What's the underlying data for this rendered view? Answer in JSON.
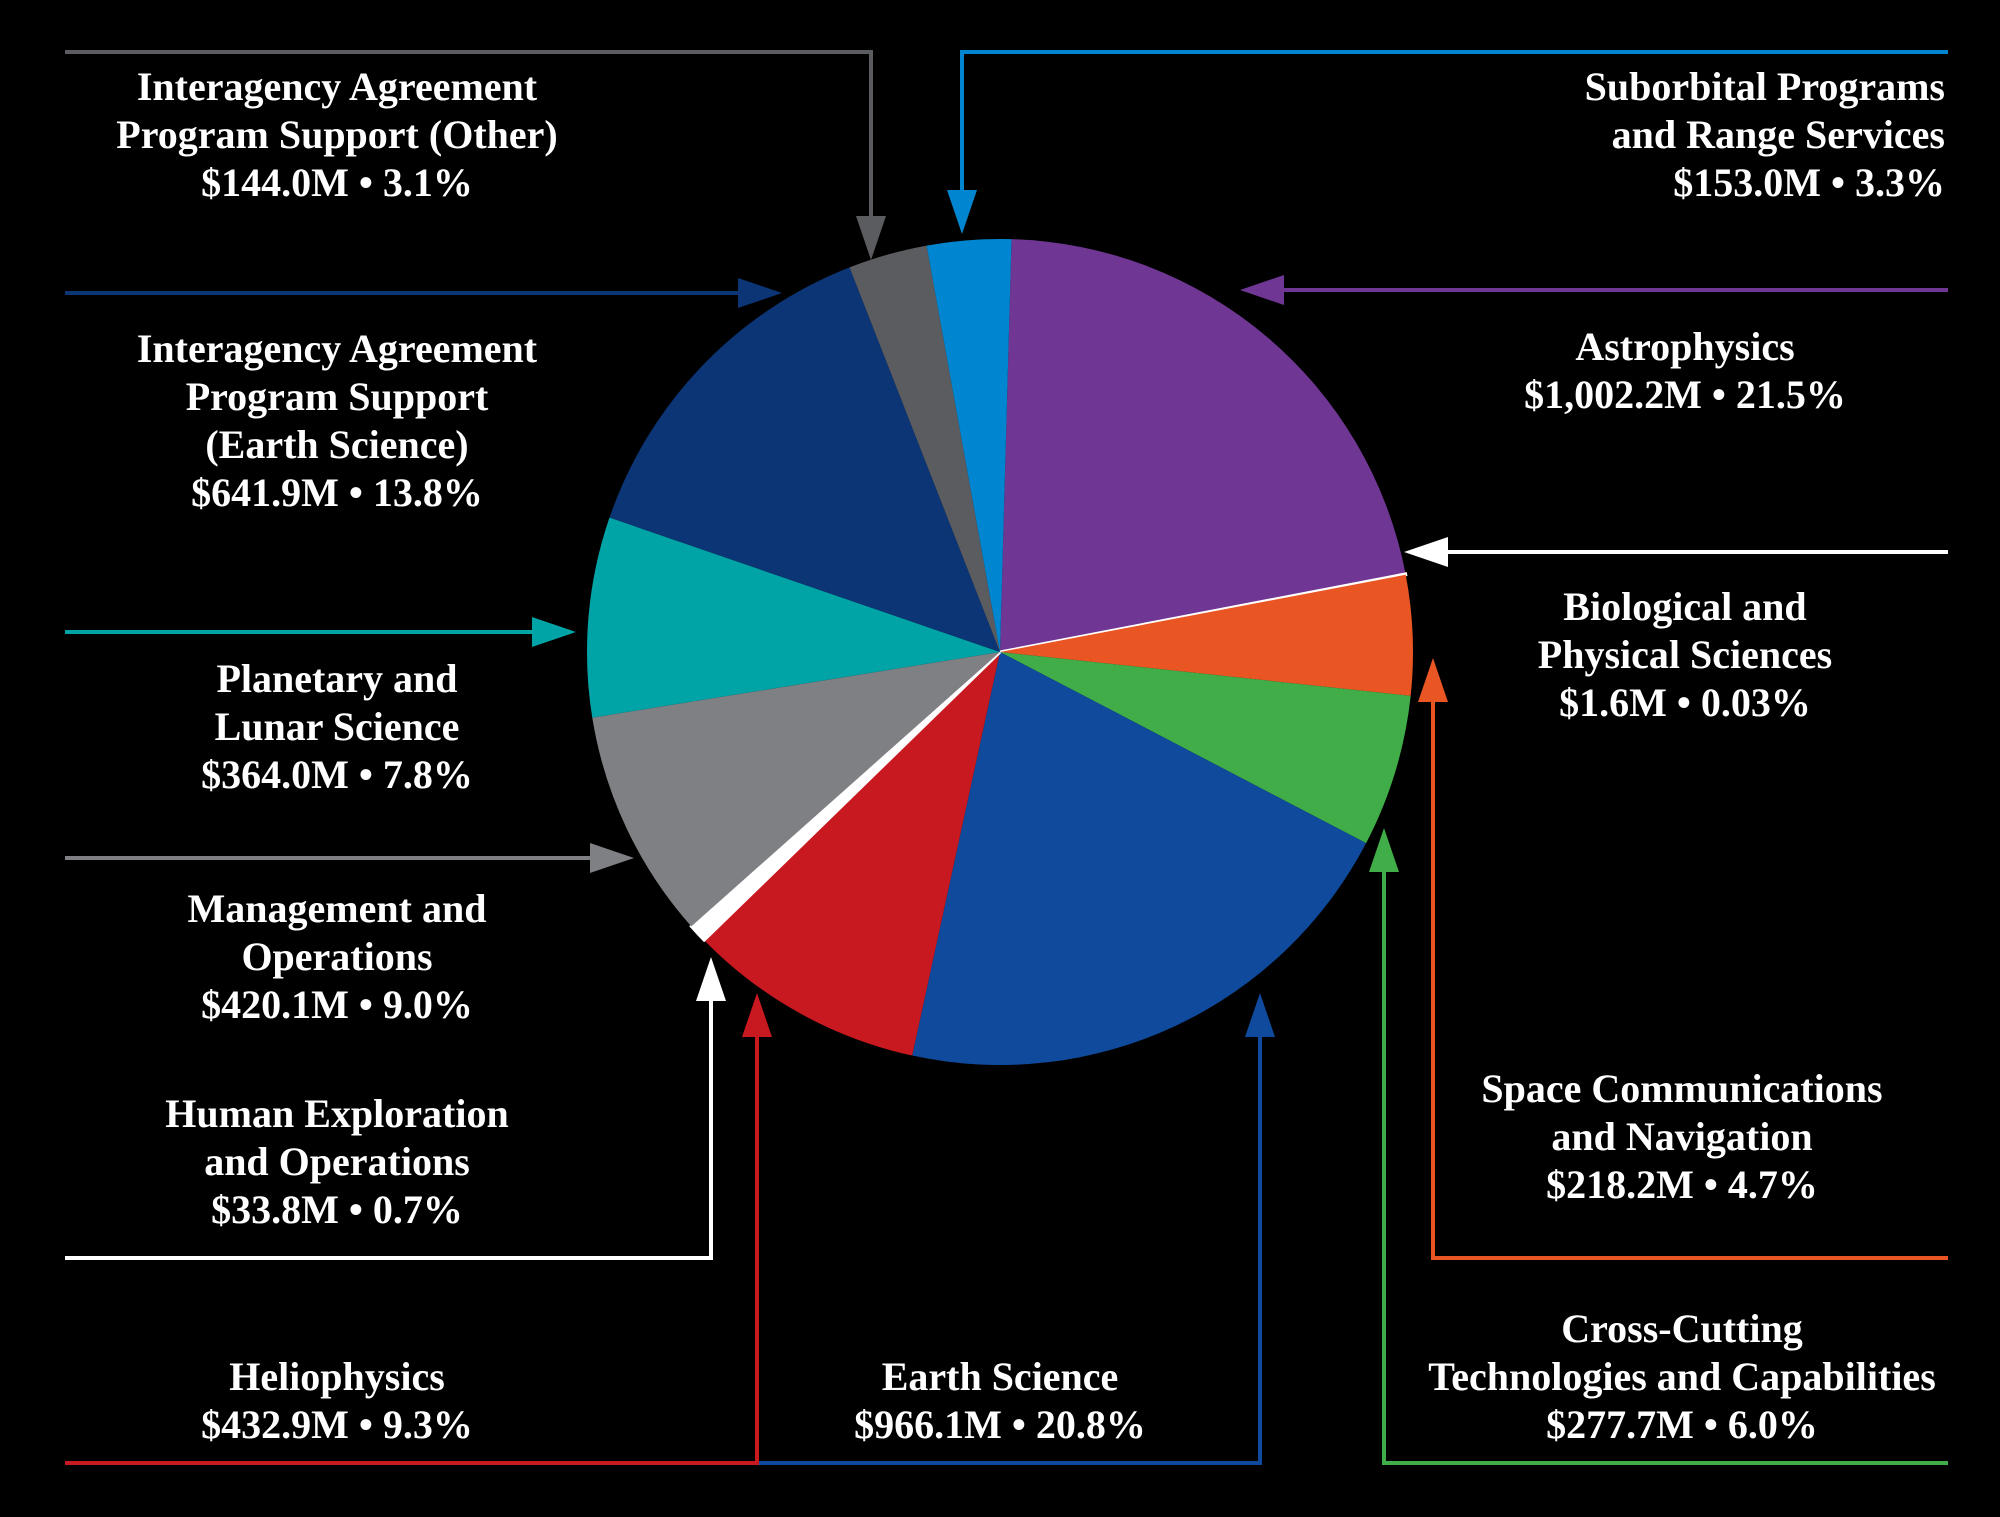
{
  "chart_data": {
    "type": "pie",
    "unit": "$M",
    "slices": [
      {
        "lines": [
          "Astrophysics"
        ],
        "value_text": "$1,002.2M • 21.5%",
        "value": 1002.2,
        "percent": 21.5,
        "color": "#6f3793"
      },
      {
        "lines": [
          "Biological and",
          "Physical Sciences"
        ],
        "value_text": "$1.6M • 0.03%",
        "value": 1.6,
        "percent": 0.03,
        "color": "#ffffff"
      },
      {
        "lines": [
          "Space Communications",
          "and Navigation"
        ],
        "value_text": "$218.2M • 4.7%",
        "value": 218.2,
        "percent": 4.7,
        "color": "#e95523"
      },
      {
        "lines": [
          "Cross-Cutting",
          "Technologies and Capabilities"
        ],
        "value_text": "$277.7M • 6.0%",
        "value": 277.7,
        "percent": 6.0,
        "color": "#40ad48"
      },
      {
        "lines": [
          "Earth Science"
        ],
        "value_text": "$966.1M • 20.8%",
        "value": 966.1,
        "percent": 20.8,
        "color": "#0f4a9c"
      },
      {
        "lines": [
          "Heliophysics"
        ],
        "value_text": "$432.9M • 9.3%",
        "value": 432.9,
        "percent": 9.3,
        "color": "#c91920"
      },
      {
        "lines": [
          "Human Exploration",
          "and Operations"
        ],
        "value_text": "$33.8M • 0.7%",
        "value": 33.8,
        "percent": 0.7,
        "color": "#ffffff"
      },
      {
        "lines": [
          "Management and",
          "Operations"
        ],
        "value_text": "$420.1M • 9.0%",
        "value": 420.1,
        "percent": 9.0,
        "color": "#7f8083"
      },
      {
        "lines": [
          "Planetary and",
          "Lunar Science"
        ],
        "value_text": "$364.0M • 7.8%",
        "value": 364.0,
        "percent": 7.8,
        "color": "#00a3a6"
      },
      {
        "lines": [
          "Interagency Agreement",
          "Program Support",
          "(Earth Science)"
        ],
        "value_text": "$641.9M • 13.8%",
        "value": 641.9,
        "percent": 13.8,
        "color": "#0c3576"
      },
      {
        "lines": [
          "Interagency Agreement",
          "Program Support (Other)"
        ],
        "value_text": "$144.0M • 3.1%",
        "value": 144.0,
        "percent": 3.1,
        "color": "#5b5c5f"
      },
      {
        "lines": [
          "Suborbital Programs",
          "and Range Services"
        ],
        "value_text": "$153.0M • 3.3%",
        "value": 153.0,
        "percent": 3.3,
        "color": "#0086d1"
      }
    ],
    "legend_colors": {
      "Biological and Physical Sciences": "#ffffff",
      "Human Exploration and Operations": "#ffffff"
    }
  }
}
